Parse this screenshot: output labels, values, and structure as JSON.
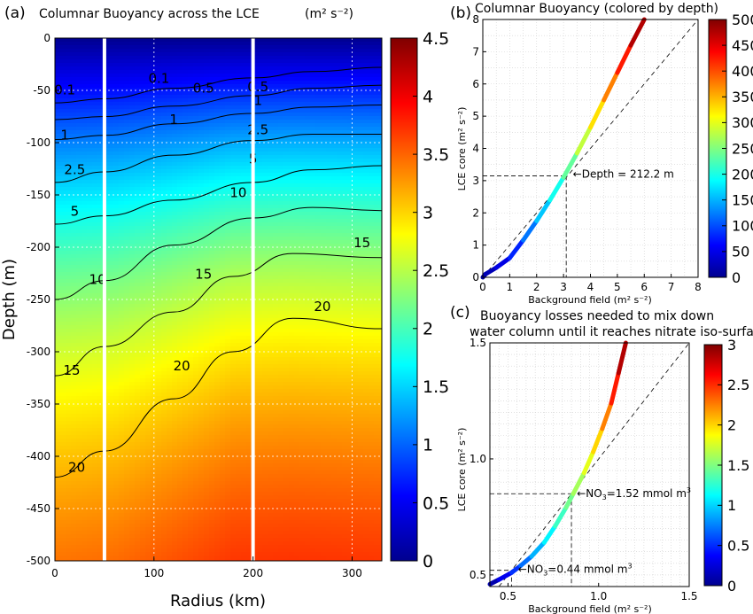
{
  "colors": {
    "jet": [
      "#00008f",
      "#0000ff",
      "#0080ff",
      "#00ffff",
      "#80ff80",
      "#ffff00",
      "#ff8000",
      "#ff0000",
      "#800000"
    ],
    "white_line": "#ffffff",
    "contour": "#000000",
    "diagonal": "#000000"
  },
  "chart_data": [
    {
      "id": "a",
      "type": "heatmap",
      "panel_label": "(a)",
      "title": "Columnar Buoyancy across the  LCE",
      "title_units": "(m² s⁻²)",
      "xlabel": "Radius (km)",
      "ylabel": "Depth (m)",
      "xlim": [
        0,
        330
      ],
      "ylim": [
        -500,
        0
      ],
      "xticks": [
        0,
        100,
        200,
        300
      ],
      "yticks": [
        0,
        -50,
        -100,
        -150,
        -200,
        -250,
        -300,
        -350,
        -400,
        -450,
        -500
      ],
      "colorbar": {
        "range": [
          0,
          4.5
        ],
        "ticks": [
          "0",
          "0.5",
          "1",
          "1.5",
          "2",
          "2.5",
          "3",
          "3.5",
          "4",
          "4.5"
        ]
      },
      "color_field": {
        "radius": [
          0,
          60,
          120,
          180,
          240,
          330
        ],
        "depth_of_value_2": [
          -205,
          -200,
          -185,
          -170,
          -168,
          -170
        ]
      },
      "vertical_markers_km": [
        50,
        200
      ],
      "contours": [
        {
          "level": "0.1",
          "points": [
            [
              0,
              -62
            ],
            [
              50,
              -58
            ],
            [
              120,
              -48
            ],
            [
              200,
              -38
            ],
            [
              260,
              -32
            ],
            [
              330,
              -28
            ]
          ]
        },
        {
          "level": "0.5",
          "points": [
            [
              0,
              -78
            ],
            [
              50,
              -75
            ],
            [
              120,
              -65
            ],
            [
              200,
              -55
            ],
            [
              260,
              -48
            ],
            [
              330,
              -45
            ]
          ]
        },
        {
          "level": "1",
          "points": [
            [
              0,
              -97
            ],
            [
              50,
              -93
            ],
            [
              120,
              -82
            ],
            [
              200,
              -72
            ],
            [
              260,
              -66
            ],
            [
              330,
              -64
            ]
          ]
        },
        {
          "level": "2.5",
          "points": [
            [
              0,
              -138
            ],
            [
              50,
              -128
            ],
            [
              120,
              -112
            ],
            [
              200,
              -98
            ],
            [
              260,
              -92
            ],
            [
              330,
              -92
            ]
          ]
        },
        {
          "level": "5",
          "points": [
            [
              0,
              -178
            ],
            [
              50,
              -170
            ],
            [
              120,
              -155
            ],
            [
              200,
              -138
            ],
            [
              260,
              -126
            ],
            [
              330,
              -122
            ]
          ]
        },
        {
          "level": "10",
          "points": [
            [
              0,
              -250
            ],
            [
              50,
              -232
            ],
            [
              120,
              -198
            ],
            [
              200,
              -172
            ],
            [
              260,
              -162
            ],
            [
              330,
              -165
            ]
          ]
        },
        {
          "level": "15",
          "points": [
            [
              0,
              -323
            ],
            [
              50,
              -295
            ],
            [
              120,
              -262
            ],
            [
              180,
              -228
            ],
            [
              240,
              -206
            ],
            [
              330,
              -210
            ]
          ]
        },
        {
          "level": "20",
          "points": [
            [
              0,
              -420
            ],
            [
              50,
              -395
            ],
            [
              120,
              -345
            ],
            [
              180,
              -300
            ],
            [
              240,
              -268
            ],
            [
              330,
              -278
            ]
          ]
        }
      ],
      "contour_labels": [
        {
          "text": "0.1",
          "x": 10,
          "y": -54
        },
        {
          "text": "0.1",
          "x": 105,
          "y": -43
        },
        {
          "text": "0.5",
          "x": 150,
          "y": -52
        },
        {
          "text": "0.5",
          "x": 205,
          "y": -51
        },
        {
          "text": "1",
          "x": 120,
          "y": -82
        },
        {
          "text": "1",
          "x": 205,
          "y": -64
        },
        {
          "text": "1",
          "x": 10,
          "y": -97
        },
        {
          "text": "2.5",
          "x": 20,
          "y": -130
        },
        {
          "text": "2.5",
          "x": 205,
          "y": -92
        },
        {
          "text": "5",
          "x": 20,
          "y": -170
        },
        {
          "text": "5",
          "x": 200,
          "y": -120
        },
        {
          "text": "10",
          "x": 43,
          "y": -235
        },
        {
          "text": "10",
          "x": 185,
          "y": -152
        },
        {
          "text": "15",
          "x": 17,
          "y": -322
        },
        {
          "text": "15",
          "x": 150,
          "y": -230
        },
        {
          "text": "15",
          "x": 310,
          "y": -200
        },
        {
          "text": "20",
          "x": 22,
          "y": -415
        },
        {
          "text": "20",
          "x": 128,
          "y": -318
        },
        {
          "text": "20",
          "x": 270,
          "y": -261
        }
      ]
    },
    {
      "id": "b",
      "type": "line",
      "panel_label": "(b)",
      "title": "Columnar Buoyancy (colored by depth)",
      "xlabel": "Background field (m² s⁻²)",
      "ylabel": "LCE core (m² s⁻²)",
      "xlim": [
        0,
        8
      ],
      "ylim": [
        0,
        8
      ],
      "xticks": [
        0,
        1,
        2,
        3,
        4,
        5,
        6,
        7,
        8
      ],
      "yticks": [
        0,
        1,
        2,
        3,
        4,
        5,
        6,
        7,
        8
      ],
      "colorbar": {
        "range": [
          0,
          500
        ],
        "ticks": [
          "0",
          "50",
          "100",
          "150",
          "200",
          "250",
          "300",
          "350",
          "400",
          "450",
          "500"
        ]
      },
      "series": [
        {
          "x": [
            0,
            0.1,
            0.5,
            1.0,
            1.5,
            2.0,
            2.5,
            3.0,
            3.5,
            4.0,
            4.5,
            5.0,
            5.5,
            6.0
          ],
          "y": [
            0,
            0.1,
            0.3,
            0.6,
            1.15,
            1.75,
            2.4,
            3.1,
            3.85,
            4.65,
            5.5,
            6.35,
            7.2,
            8.0
          ],
          "depth": [
            0,
            10,
            35,
            60,
            100,
            140,
            180,
            212,
            260,
            305,
            350,
            400,
            450,
            500
          ]
        }
      ],
      "reference": {
        "x": 3.1,
        "y": 3.15
      },
      "annotation": {
        "text": "Depth = 212.2 m",
        "x": 3.15,
        "y": 3.2
      }
    },
    {
      "id": "c",
      "type": "line",
      "panel_label": "(c)",
      "title_lines": [
        "Buoyancy losses needed to mix down",
        "water column until it reaches nitrate iso-surface"
      ],
      "xlabel": "Background field (m² s⁻²)",
      "ylabel": "LCE core (m² s⁻²)",
      "xlim": [
        0.4,
        1.5
      ],
      "ylim": [
        0.45,
        1.5
      ],
      "xticks": [
        0.5,
        1.0,
        1.5
      ],
      "yticks": [
        0.5,
        1.0,
        1.5
      ],
      "xtick_labels": [
        "0.5",
        "1.0",
        "1.5"
      ],
      "ytick_labels": [
        "0.5",
        "1.0",
        "1.5"
      ],
      "colorbar": {
        "range": [
          0,
          3
        ],
        "ticks": [
          "0",
          "0.5",
          "1",
          "1.5",
          "2",
          "2.5",
          "3"
        ]
      },
      "series": [
        {
          "x": [
            0.4,
            0.45,
            0.52,
            0.57,
            0.63,
            0.7,
            0.76,
            0.82,
            0.86,
            0.92,
            0.97,
            1.02,
            1.07,
            1.11,
            1.15
          ],
          "y": [
            0.46,
            0.48,
            0.51,
            0.54,
            0.58,
            0.64,
            0.71,
            0.79,
            0.85,
            0.94,
            1.03,
            1.13,
            1.24,
            1.37,
            1.5
          ],
          "nitrate": [
            0.0,
            0.2,
            0.44,
            0.6,
            0.8,
            1.0,
            1.2,
            1.4,
            1.52,
            1.7,
            1.9,
            2.1,
            2.4,
            2.7,
            3.0
          ]
        }
      ],
      "references": [
        {
          "x": 0.52,
          "y": 0.52
        },
        {
          "x": 0.85,
          "y": 0.85
        }
      ],
      "annotations": [
        {
          "main": "NO",
          "sub": "3",
          "rest": "=0.44 mmol m",
          "sup": "3",
          "x": 0.555,
          "y": 0.525
        },
        {
          "main": "NO",
          "sub": "3",
          "rest": "=1.52 mmol m",
          "sup": "3",
          "x": 0.88,
          "y": 0.85
        }
      ]
    }
  ]
}
